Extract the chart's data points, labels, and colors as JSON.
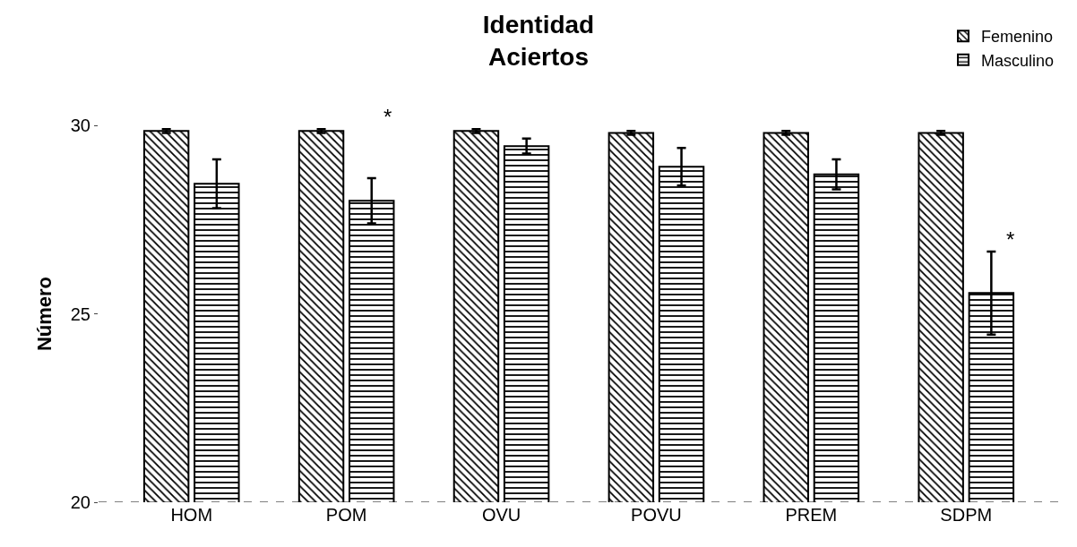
{
  "chart_data": {
    "type": "bar",
    "title": "Identidad\nAciertos",
    "ylabel": "Número",
    "categories": [
      "HOM",
      "POM",
      "OVU",
      "POVU",
      "PREM",
      "SDPM"
    ],
    "series": [
      {
        "name": "Femenino",
        "color": "#000000",
        "values": [
          29.85,
          29.85,
          29.85,
          29.8,
          29.8,
          29.8
        ],
        "errors": [
          0.05,
          0.05,
          0.05,
          0.05,
          0.05,
          0.05
        ]
      },
      {
        "name": "Masculino",
        "color": "#000000",
        "values": [
          28.45,
          28.0,
          29.45,
          28.9,
          28.7,
          25.55
        ],
        "errors": [
          0.65,
          0.6,
          0.2,
          0.5,
          0.4,
          1.1
        ]
      }
    ],
    "ylim": [
      20,
      30
    ],
    "yticks": [
      20,
      25,
      30
    ],
    "legend": "top right",
    "annotations": [
      "*",
      "*"
    ]
  }
}
